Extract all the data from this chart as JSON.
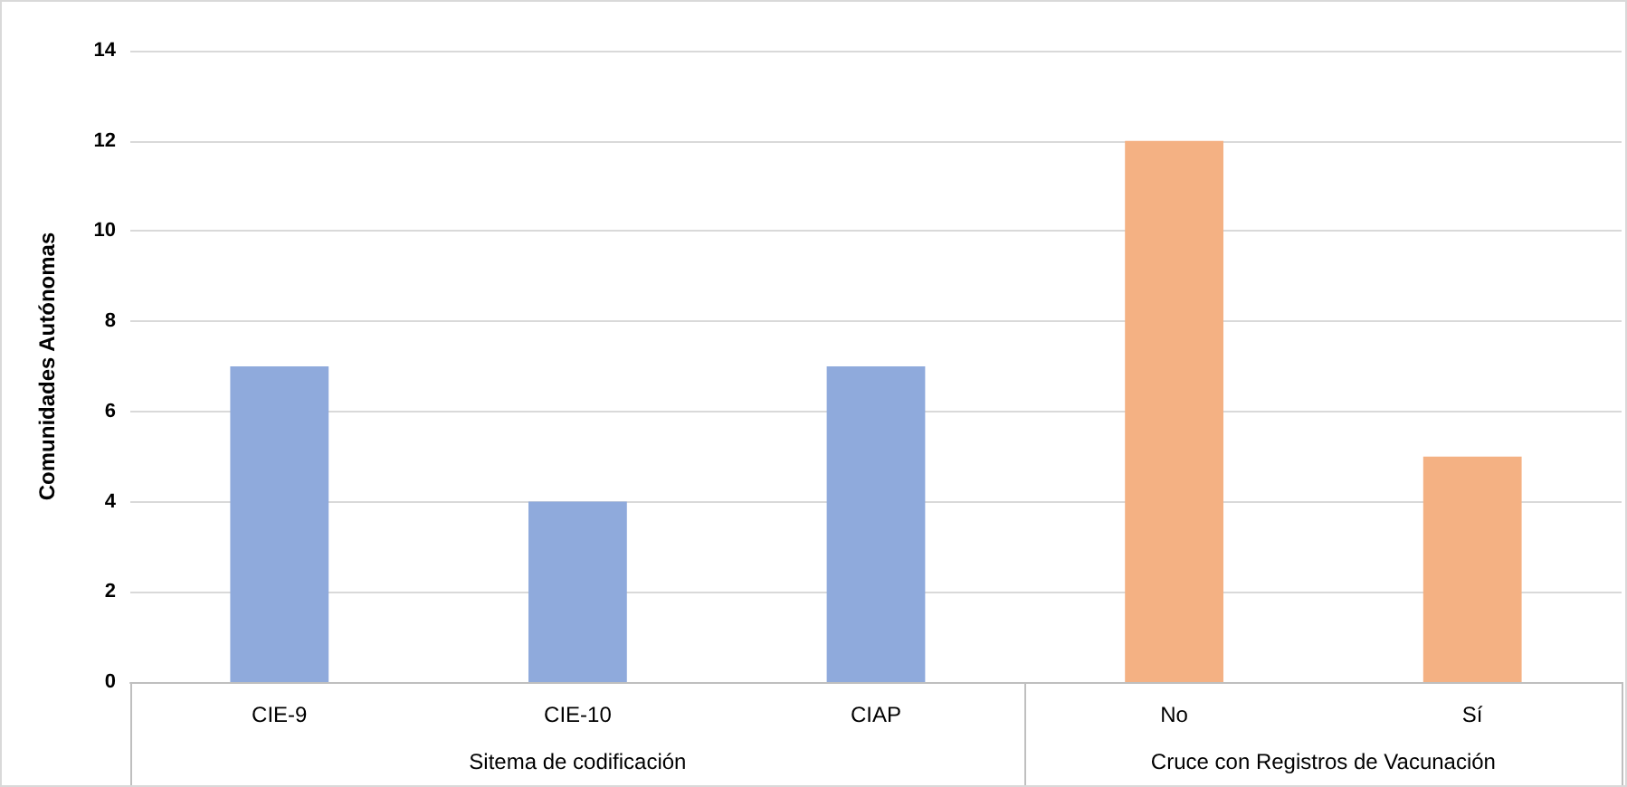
{
  "chart_data": {
    "type": "bar",
    "ylabel": "Comunidades Autónomas",
    "categories": [
      "CIE-9",
      "CIE-10",
      "CIAP",
      "No",
      "Sí"
    ],
    "values": [
      7,
      4,
      7,
      12,
      5
    ],
    "colors": [
      "#8faadc",
      "#8faadc",
      "#8faadc",
      "#f4b183",
      "#f4b183"
    ],
    "ylim": [
      0,
      14
    ],
    "yticks": [
      0,
      2,
      4,
      6,
      8,
      10,
      12,
      14
    ],
    "grid": "y",
    "annotations": [
      "Sitema de codificación",
      "Cruce con Registros de Vacunación"
    ]
  }
}
